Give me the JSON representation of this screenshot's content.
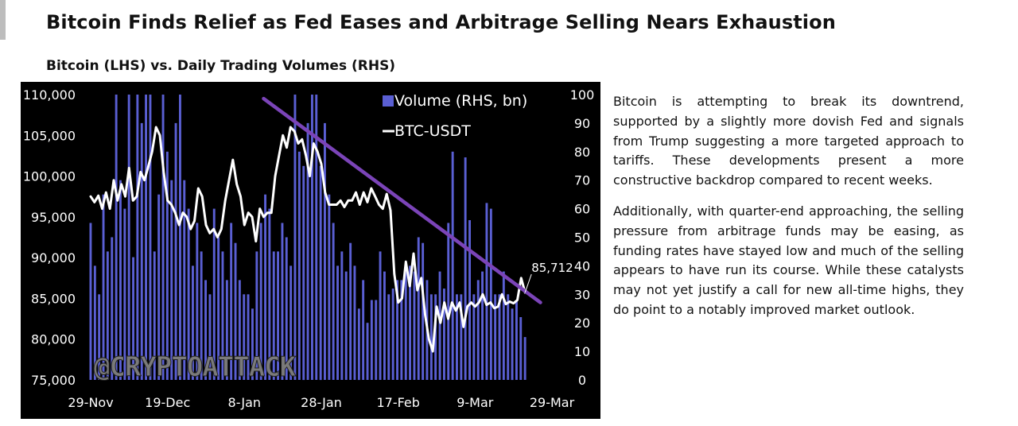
{
  "header": {
    "title": "Bitcoin Finds Relief as Fed Eases and Arbitrage Selling Nears Exhaustion",
    "subtitle": "Bitcoin (LHS) vs. Daily Trading Volumes (RHS)"
  },
  "article": {
    "paragraphs": [
      "Bitcoin is attempting to break its downtrend, supported by a slightly more dovish Fed and signals from Trump suggesting a more targeted approach to tariffs. These developments present a more constructive backdrop compared to recent weeks.",
      "Additionally, with quarter-end approaching, the selling pressure from arbitrage funds may be easing, as funding rates have stayed low and much of the selling appears to have run its course. While these catalysts may not yet justify a call for new all-time highs, they do point to a notably improved market outlook."
    ]
  },
  "colors": {
    "chart_bg": "#000000",
    "bar": "#5a5fd3",
    "line": "#ffffff",
    "trend": "#7b44b8",
    "axis_text": "#ffffff"
  },
  "chart_data": {
    "type": "bar+line",
    "title": "Bitcoin (LHS) vs. Daily Trading Volumes (RHS)",
    "watermark": "@CRYPTOATTACK",
    "legend": {
      "position": "top-right",
      "entries": [
        "Volume (RHS, bn)",
        "BTC-USDT"
      ]
    },
    "left_axis": {
      "ylim": [
        75000,
        110000
      ],
      "ticks": [
        "110,000",
        "105,000",
        "100,000",
        "95,000",
        "90,000",
        "85,000",
        "80,000",
        "75,000"
      ]
    },
    "right_axis": {
      "ylim": [
        0,
        100
      ],
      "ticks": [
        "100",
        "90",
        "80",
        "70",
        "60",
        "50",
        "40",
        "30",
        "20",
        "10",
        "0"
      ]
    },
    "x_ticks": [
      "29-Nov",
      "19-Dec",
      "8-Jan",
      "28-Jan",
      "17-Feb",
      "9-Mar",
      "29-Mar"
    ],
    "x_range_days": [
      0,
      120
    ],
    "series": [
      {
        "name": "Volume (RHS, bn)",
        "axis": "right",
        "kind": "bar",
        "values": [
          55,
          40,
          30,
          65,
          45,
          50,
          100,
          70,
          60,
          100,
          43,
          100,
          90,
          100,
          100,
          45,
          65,
          100,
          80,
          70,
          90,
          100,
          70,
          60,
          40,
          55,
          45,
          35,
          30,
          60,
          50,
          45,
          35,
          55,
          48,
          35,
          30,
          30,
          25,
          45,
          55,
          65,
          60,
          45,
          45,
          55,
          50,
          40,
          100,
          80,
          75,
          90,
          100,
          100,
          75,
          90,
          65,
          55,
          40,
          45,
          38,
          48,
          40,
          25,
          35,
          20,
          28,
          28,
          45,
          38,
          30,
          32,
          35,
          35,
          40,
          40,
          38,
          50,
          48,
          35,
          30,
          30,
          38,
          32,
          55,
          80,
          30,
          30,
          78,
          56,
          30,
          35,
          38,
          62,
          60,
          30,
          30,
          38,
          30,
          25,
          28,
          22,
          15
        ]
      },
      {
        "name": "BTC-USDT",
        "axis": "left",
        "kind": "line",
        "x": [
          0,
          1,
          2,
          3,
          4,
          5,
          6,
          7,
          8,
          9,
          10,
          11,
          12,
          13,
          14,
          15,
          16,
          17,
          18,
          19,
          20,
          21,
          22,
          23,
          24,
          25,
          26,
          27,
          28,
          29,
          30,
          31,
          32,
          33,
          34,
          35,
          36,
          37,
          38,
          39,
          40,
          41,
          42,
          43,
          44,
          45,
          46,
          47,
          48,
          49,
          50,
          51,
          52,
          53,
          54,
          55,
          56,
          57,
          58,
          59,
          60,
          61,
          62,
          63,
          64,
          65,
          66,
          67,
          68,
          69,
          70,
          71,
          72,
          73,
          74,
          75,
          76,
          77,
          78,
          79,
          80,
          81,
          82,
          83,
          84,
          85,
          86,
          87,
          88,
          89,
          90,
          91,
          92,
          93,
          94,
          95,
          96,
          97,
          98,
          99,
          100,
          101,
          102,
          103,
          104,
          105,
          106,
          107,
          108,
          109,
          110,
          111,
          112,
          113
        ],
        "values": [
          97500,
          96800,
          97600,
          96000,
          98000,
          96000,
          99500,
          97000,
          99000,
          97500,
          101000,
          97000,
          97500,
          100500,
          99500,
          101200,
          103000,
          106000,
          105000,
          100500,
          97000,
          96500,
          95500,
          94000,
          95500,
          95000,
          93500,
          94500,
          98500,
          97500,
          94000,
          93000,
          93500,
          92500,
          93500,
          97000,
          99500,
          102000,
          99000,
          97500,
          94000,
          95500,
          95000,
          92000,
          96000,
          95000,
          95500,
          95500,
          100000,
          102500,
          105000,
          103500,
          106000,
          105500,
          104000,
          104500,
          102500,
          100000,
          104000,
          103000,
          101500,
          98000,
          96500,
          96500,
          96500,
          97000,
          96200,
          97000,
          97000,
          98000,
          96500,
          98000,
          96800,
          98500,
          97500,
          96500,
          96000,
          97800,
          95800,
          88000,
          84500,
          85000,
          89500,
          86500,
          90500,
          86000,
          87500,
          83000,
          80000,
          78500,
          84000,
          82000,
          84500,
          82500,
          84500,
          83500,
          84500,
          81500,
          84000,
          84500,
          84000,
          84500,
          85500,
          84200,
          84500,
          83800,
          84000,
          85500,
          84300,
          84600,
          84400,
          84800,
          87500,
          85712
        ]
      },
      {
        "name": "Downtrend line",
        "axis": "left",
        "kind": "line",
        "x": [
          45,
          117
        ],
        "values": [
          109500,
          84500
        ]
      }
    ],
    "annotations": [
      {
        "text": "85,712",
        "series": "BTC-USDT",
        "x": 113,
        "value": 85712
      }
    ]
  }
}
